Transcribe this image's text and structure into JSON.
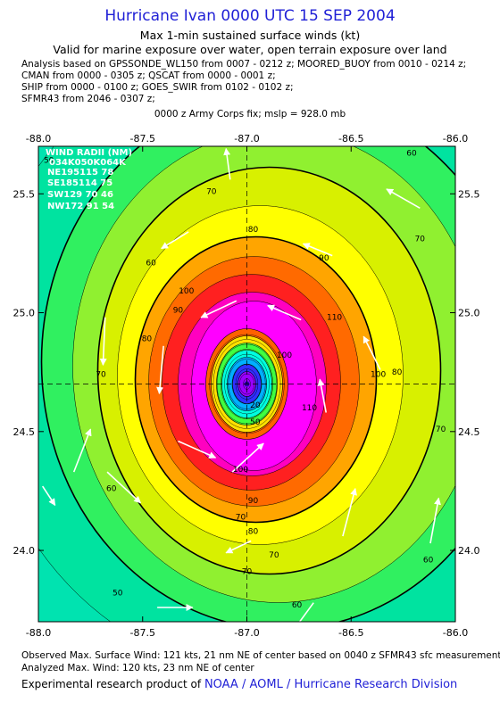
{
  "header": {
    "title": "Hurricane Ivan 0000 UTC 15 SEP 2004",
    "subtitle": "Max 1-min sustained surface winds (kt)",
    "valid": "Valid for marine exposure over water, open terrain exposure over land",
    "info_lines": [
      "Analysis based on  GPSSONDE_WL150 from 0007 - 0212 z;  MOORED_BUOY from 0010 - 0214 z;",
      "CMAN from 0000 - 0305 z;  QSCAT from 0000 - 0001 z;",
      "SHIP from 0000 - 0100 z;  GOES_SWIR from 0102 - 0102 z;",
      "SFMR43 from 2046 - 0307 z;"
    ],
    "fix": "0000 z Army Corps fix; mslp = 928.0 mb"
  },
  "footer": {
    "observed": "Observed Max. Surface Wind: 121 kts, 21 nm NE of center based on 0040 z SFMR43 sfc measurement",
    "analyzed": "Analyzed Max. Wind: 120 kts, 23 nm NE of center",
    "product_prefix": "Experimental research product of",
    "organization": "NOAA / AOML / Hurricane Research Division"
  },
  "wind_radii": {
    "title": "WIND RADII (NM)",
    "header_row": "034K050K064K",
    "rows": [
      "NE195115  78",
      "SE185114  75",
      "SW129  70  46",
      "NW172  91  54"
    ]
  },
  "colors": {
    "title": "#1f1fd6",
    "bands": [
      "#00e3a0",
      "#30f060",
      "#90f030",
      "#d8f000",
      "#ffff00",
      "#ffa500",
      "#ff6a00",
      "#ff2020",
      "#ff00c0",
      "#ff00ff"
    ],
    "core": [
      "#9900ff",
      "#3030ff",
      "#00b0ff",
      "#00ffe0",
      "#40ff40",
      "#ffe000",
      "#ff6000"
    ]
  },
  "chart_data": {
    "type": "contour",
    "xlim": [
      -88.0,
      -86.0
    ],
    "ylim": [
      23.7,
      25.7
    ],
    "x_ticks": [
      -88.0,
      -87.5,
      -87.0,
      -86.5,
      -86.0
    ],
    "x_tick_labels": [
      "-88.0",
      "-87.5",
      "-87.0",
      "-86.5",
      "-86.0"
    ],
    "y_ticks": [
      24.0,
      24.5,
      25.0,
      25.5
    ],
    "y_tick_labels": [
      "24.0",
      "24.5",
      "25.0",
      "25.5"
    ],
    "center": {
      "lon": -87.0,
      "lat": 24.7
    },
    "contour_levels_kt": [
      50,
      60,
      70,
      80,
      90,
      100,
      110
    ],
    "highlight_contours_kt": [
      34,
      50,
      64
    ],
    "contour_labels": [
      {
        "lon": -87.65,
        "lat": 24.25,
        "value": "60"
      },
      {
        "lon": -87.48,
        "lat": 24.88,
        "value": "80"
      },
      {
        "lon": -87.46,
        "lat": 25.2,
        "value": "60"
      },
      {
        "lon": -87.33,
        "lat": 25.0,
        "value": "90"
      },
      {
        "lon": -87.29,
        "lat": 25.08,
        "value": "100"
      },
      {
        "lon": -87.17,
        "lat": 25.5,
        "value": "70"
      },
      {
        "lon": -86.97,
        "lat": 25.34,
        "value": "80"
      },
      {
        "lon": -86.63,
        "lat": 25.22,
        "value": "90"
      },
      {
        "lon": -86.58,
        "lat": 24.97,
        "value": "110"
      },
      {
        "lon": -86.21,
        "lat": 25.66,
        "value": "60"
      },
      {
        "lon": -86.17,
        "lat": 25.3,
        "value": "70"
      },
      {
        "lon": -86.28,
        "lat": 24.74,
        "value": "80"
      },
      {
        "lon": -86.37,
        "lat": 24.73,
        "value": "100"
      },
      {
        "lon": -86.82,
        "lat": 24.81,
        "value": "100"
      },
      {
        "lon": -86.07,
        "lat": 24.5,
        "value": "70"
      },
      {
        "lon": -86.13,
        "lat": 23.95,
        "value": "60"
      },
      {
        "lon": -87.0,
        "lat": 23.9,
        "value": "70"
      },
      {
        "lon": -87.03,
        "lat": 24.13,
        "value": "70"
      },
      {
        "lon": -86.87,
        "lat": 23.97,
        "value": "70"
      },
      {
        "lon": -86.97,
        "lat": 24.07,
        "value": "80"
      },
      {
        "lon": -86.97,
        "lat": 24.2,
        "value": "90"
      },
      {
        "lon": -87.03,
        "lat": 24.33,
        "value": "100"
      },
      {
        "lon": -87.7,
        "lat": 24.73,
        "value": "70"
      },
      {
        "lon": -86.76,
        "lat": 23.76,
        "value": "60"
      },
      {
        "lon": -87.62,
        "lat": 23.81,
        "value": "50"
      },
      {
        "lon": -86.7,
        "lat": 24.59,
        "value": "110"
      },
      {
        "lon": -86.96,
        "lat": 24.6,
        "value": "20"
      },
      {
        "lon": -86.96,
        "lat": 24.53,
        "value": "50"
      },
      {
        "lon": -87.95,
        "lat": 25.63,
        "value": "50"
      }
    ],
    "wind_vectors": [
      {
        "lon": -86.17,
        "lat": 25.44,
        "dlon": -0.16,
        "dlat": 0.08
      },
      {
        "lon": -87.28,
        "lat": 25.34,
        "dlon": -0.13,
        "dlat": -0.07
      },
      {
        "lon": -86.59,
        "lat": 25.24,
        "dlon": -0.14,
        "dlat": 0.05
      },
      {
        "lon": -87.08,
        "lat": 25.56,
        "dlon": -0.02,
        "dlat": 0.13
      },
      {
        "lon": -87.05,
        "lat": 25.05,
        "dlon": -0.17,
        "dlat": -0.07
      },
      {
        "lon": -86.74,
        "lat": 24.97,
        "dlon": -0.16,
        "dlat": 0.06
      },
      {
        "lon": -87.68,
        "lat": 24.98,
        "dlon": -0.01,
        "dlat": -0.2
      },
      {
        "lon": -87.4,
        "lat": 24.86,
        "dlon": -0.02,
        "dlat": -0.2
      },
      {
        "lon": -86.36,
        "lat": 24.76,
        "dlon": -0.08,
        "dlat": 0.14
      },
      {
        "lon": -86.62,
        "lat": 24.58,
        "dlon": -0.03,
        "dlat": 0.14
      },
      {
        "lon": -87.83,
        "lat": 24.33,
        "dlon": 0.08,
        "dlat": 0.18
      },
      {
        "lon": -87.33,
        "lat": 24.46,
        "dlon": 0.18,
        "dlat": -0.07
      },
      {
        "lon": -87.07,
        "lat": 24.33,
        "dlon": 0.15,
        "dlat": 0.12
      },
      {
        "lon": -87.67,
        "lat": 24.33,
        "dlon": 0.16,
        "dlat": -0.13
      },
      {
        "lon": -86.54,
        "lat": 24.06,
        "dlon": 0.06,
        "dlat": 0.2
      },
      {
        "lon": -86.12,
        "lat": 24.03,
        "dlon": 0.04,
        "dlat": 0.19
      },
      {
        "lon": -87.43,
        "lat": 23.76,
        "dlon": 0.17,
        "dlat": 0.0
      },
      {
        "lon": -86.98,
        "lat": 24.04,
        "dlon": -0.12,
        "dlat": -0.05
      },
      {
        "lon": -86.68,
        "lat": 23.78,
        "dlon": -0.1,
        "dlat": -0.12
      },
      {
        "lon": -87.98,
        "lat": 24.27,
        "dlon": 0.06,
        "dlat": -0.08
      }
    ]
  }
}
